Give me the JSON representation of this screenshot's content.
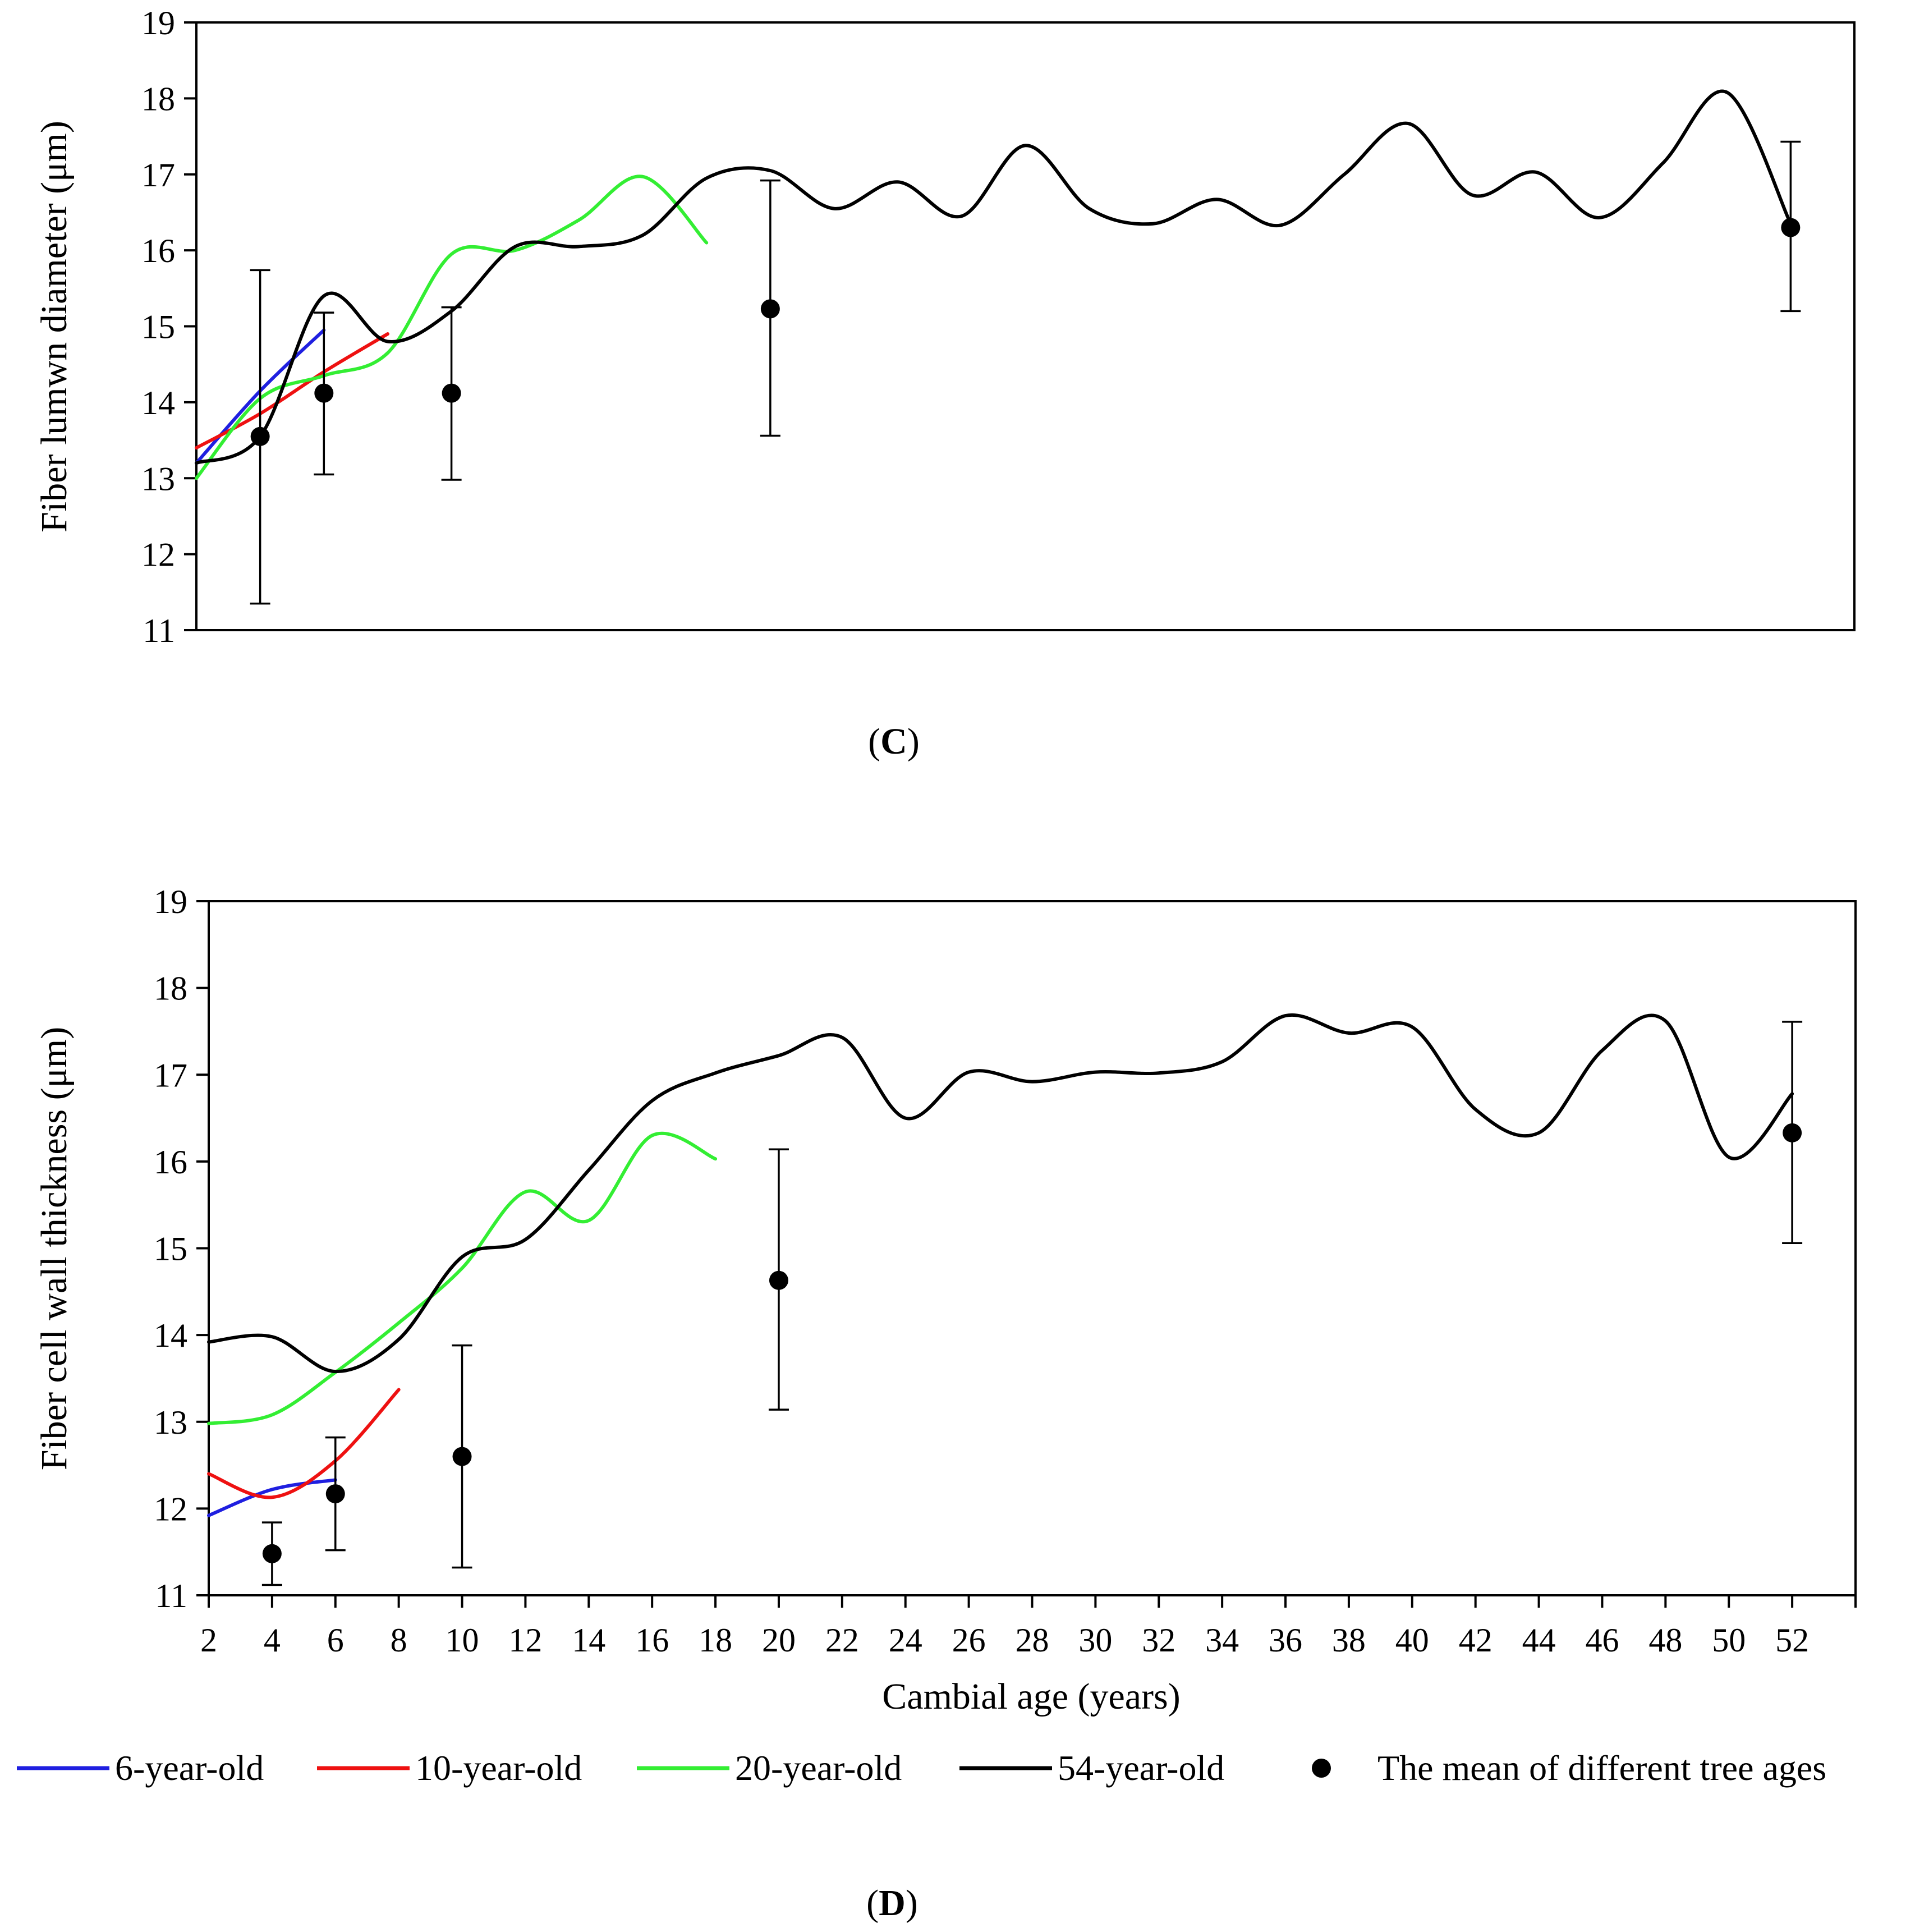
{
  "chart_data": [
    {
      "panel_label": "C",
      "type": "line",
      "ylabel": "Fiber lumwn diameter (μm)",
      "xlabel": "",
      "xlim": [
        2,
        54
      ],
      "ylim": [
        11,
        19
      ],
      "yticks": [
        "11",
        "12",
        "13",
        "14",
        "15",
        "16",
        "17",
        "18",
        "19"
      ],
      "series": [
        {
          "name": "6-year-old",
          "color": "#1f1fe0",
          "x": [
            2,
            4,
            6
          ],
          "y": [
            13.2,
            14.15,
            14.95
          ]
        },
        {
          "name": "10-year-old",
          "color": "#ee1111",
          "x": [
            2,
            4,
            6,
            8
          ],
          "y": [
            13.4,
            13.85,
            14.4,
            14.9
          ]
        },
        {
          "name": "20-year-old",
          "color": "#33ee33",
          "x": [
            2,
            4,
            6,
            8,
            10,
            12,
            14,
            16,
            18
          ],
          "y": [
            13.0,
            14.05,
            14.35,
            14.65,
            15.95,
            16.0,
            16.4,
            16.97,
            16.1
          ]
        },
        {
          "name": "54-year-old",
          "color": "#000000",
          "x": [
            2,
            4,
            6,
            8,
            10,
            12,
            14,
            16,
            18,
            20,
            22,
            24,
            26,
            28,
            30,
            32,
            34,
            36,
            38,
            40,
            42,
            44,
            46,
            48,
            50,
            52
          ],
          "y": [
            13.2,
            13.55,
            15.4,
            14.8,
            15.2,
            16.05,
            16.05,
            16.2,
            16.95,
            17.05,
            16.55,
            16.9,
            16.45,
            17.38,
            16.55,
            16.35,
            16.67,
            16.33,
            17.0,
            17.67,
            16.73,
            17.03,
            16.43,
            17.15,
            18.08,
            16.35
          ]
        }
      ],
      "mean_points": {
        "name": "The mean of different tree ages",
        "x": [
          4,
          6,
          10,
          20,
          52
        ],
        "y": [
          13.55,
          14.12,
          14.12,
          15.23,
          16.3
        ],
        "err_low": [
          11.35,
          13.05,
          12.98,
          13.56,
          15.2
        ],
        "err_high": [
          15.74,
          15.18,
          15.25,
          16.92,
          17.43
        ]
      }
    },
    {
      "panel_label": "D",
      "type": "line",
      "ylabel": "Fiber cell wall thickness (μm)",
      "xlabel": "Cambial age (years)",
      "xlim": [
        2,
        54
      ],
      "ylim": [
        11,
        19
      ],
      "xticks": [
        "2",
        "4",
        "6",
        "8",
        "10",
        "12",
        "14",
        "16",
        "18",
        "20",
        "22",
        "24",
        "26",
        "28",
        "30",
        "32",
        "34",
        "36",
        "38",
        "40",
        "42",
        "44",
        "46",
        "48",
        "50",
        "52"
      ],
      "yticks": [
        "11",
        "12",
        "13",
        "14",
        "15",
        "16",
        "17",
        "18",
        "19"
      ],
      "series": [
        {
          "name": "6-year-old",
          "color": "#1f1fe0",
          "x": [
            2,
            4,
            6
          ],
          "y": [
            11.92,
            12.22,
            12.33
          ]
        },
        {
          "name": "10-year-old",
          "color": "#ee1111",
          "x": [
            2,
            4,
            6,
            8
          ],
          "y": [
            12.4,
            12.13,
            12.55,
            13.37
          ]
        },
        {
          "name": "20-year-old",
          "color": "#33ee33",
          "x": [
            2,
            4,
            6,
            8,
            10,
            12,
            14,
            16,
            18
          ],
          "y": [
            12.98,
            13.08,
            13.57,
            14.14,
            14.77,
            15.65,
            15.32,
            16.3,
            16.03
          ]
        },
        {
          "name": "54-year-old",
          "color": "#000000",
          "x": [
            2,
            4,
            6,
            8,
            10,
            12,
            14,
            16,
            18,
            20,
            22,
            24,
            26,
            28,
            30,
            32,
            34,
            36,
            38,
            40,
            42,
            44,
            46,
            48,
            50,
            52
          ],
          "y": [
            13.92,
            13.98,
            13.58,
            13.95,
            14.9,
            15.1,
            15.9,
            16.7,
            17.02,
            17.22,
            17.43,
            16.5,
            17.03,
            16.92,
            17.03,
            17.02,
            17.15,
            17.68,
            17.48,
            17.55,
            16.6,
            16.33,
            17.28,
            17.62,
            16.05,
            16.78
          ]
        }
      ],
      "mean_points": {
        "name": "The mean of different tree ages",
        "x": [
          4,
          6,
          10,
          20,
          52
        ],
        "y": [
          11.48,
          12.17,
          12.6,
          14.63,
          16.33
        ],
        "err_low": [
          11.12,
          11.52,
          11.32,
          13.14,
          15.06
        ],
        "err_high": [
          11.84,
          12.82,
          13.88,
          16.14,
          17.61
        ]
      }
    }
  ],
  "legend": {
    "items": [
      {
        "label": "6-year-old",
        "color": "#1f1fe0",
        "kind": "line"
      },
      {
        "label": "10-year-old",
        "color": "#ee1111",
        "kind": "line"
      },
      {
        "label": "20-year-old",
        "color": "#33ee33",
        "kind": "line"
      },
      {
        "label": "54-year-old",
        "color": "#000000",
        "kind": "line"
      },
      {
        "label": "The mean of different tree ages",
        "color": "#000000",
        "kind": "marker"
      }
    ]
  }
}
